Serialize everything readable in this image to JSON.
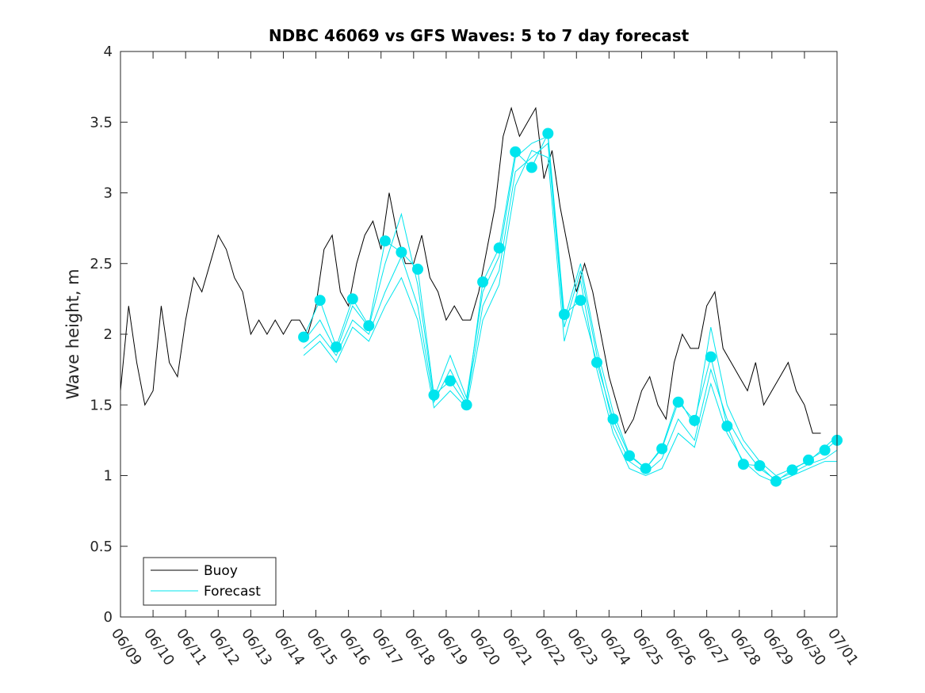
{
  "chart_data": {
    "type": "line",
    "title": "NDBC 46069 vs GFS Waves: 5 to 7 day forecast",
    "xlabel": "",
    "ylabel": "Wave height, m",
    "xlim": [
      "06/09",
      "07/01"
    ],
    "ylim": [
      0,
      4
    ],
    "x_tick_labels": [
      "06/09",
      "06/10",
      "06/11",
      "06/12",
      "06/13",
      "06/14",
      "06/15",
      "06/16",
      "06/17",
      "06/18",
      "06/19",
      "06/20",
      "06/21",
      "06/22",
      "06/23",
      "06/24",
      "06/25",
      "06/26",
      "06/27",
      "06/28",
      "06/29",
      "06/30",
      "07/01"
    ],
    "y_ticks": [
      0,
      0.5,
      1,
      1.5,
      2,
      2.5,
      3,
      3.5,
      4
    ],
    "y_tick_labels": [
      "0",
      "0.5",
      "1",
      "1.5",
      "2",
      "2.5",
      "3",
      "3.5",
      "4"
    ],
    "grid": false,
    "legend": {
      "placement": "bottom-left",
      "entries": [
        "Buoy",
        "Forecast"
      ]
    },
    "colors": {
      "buoy": "#000000",
      "forecast": "#00e5ee"
    },
    "series": [
      {
        "name": "Buoy",
        "x": [
          "06/09 00:00",
          "06/09 06:00",
          "06/09 12:00",
          "06/09 18:00",
          "06/10 00:00",
          "06/10 06:00",
          "06/10 12:00",
          "06/10 18:00",
          "06/11 00:00",
          "06/11 06:00",
          "06/11 12:00",
          "06/11 18:00",
          "06/12 00:00",
          "06/12 06:00",
          "06/12 12:00",
          "06/12 18:00",
          "06/13 00:00",
          "06/13 06:00",
          "06/13 12:00",
          "06/13 18:00",
          "06/14 00:00",
          "06/14 06:00",
          "06/14 12:00",
          "06/14 18:00",
          "06/15 00:00",
          "06/15 06:00",
          "06/15 12:00",
          "06/15 18:00",
          "06/16 00:00",
          "06/16 06:00",
          "06/16 12:00",
          "06/16 18:00",
          "06/17 00:00",
          "06/17 06:00",
          "06/17 12:00",
          "06/17 18:00",
          "06/18 00:00",
          "06/18 06:00",
          "06/18 12:00",
          "06/18 18:00",
          "06/19 00:00",
          "06/19 06:00",
          "06/19 12:00",
          "06/19 18:00",
          "06/20 00:00",
          "06/20 06:00",
          "06/20 12:00",
          "06/20 18:00",
          "06/21 00:00",
          "06/21 06:00",
          "06/21 12:00",
          "06/21 18:00",
          "06/22 00:00",
          "06/22 06:00",
          "06/22 12:00",
          "06/22 18:00",
          "06/23 00:00",
          "06/23 06:00",
          "06/23 12:00",
          "06/23 18:00",
          "06/24 00:00",
          "06/24 06:00",
          "06/24 12:00",
          "06/24 18:00",
          "06/25 00:00",
          "06/25 06:00",
          "06/25 12:00",
          "06/25 18:00",
          "06/26 00:00",
          "06/26 06:00",
          "06/26 12:00",
          "06/26 18:00",
          "06/27 00:00",
          "06/27 06:00",
          "06/27 12:00",
          "06/27 18:00",
          "06/28 00:00",
          "06/28 06:00",
          "06/28 12:00",
          "06/28 18:00",
          "06/29 00:00",
          "06/29 06:00",
          "06/29 12:00",
          "06/29 18:00",
          "06/30 00:00",
          "06/30 06:00",
          "06/30 12:00"
        ],
        "y": [
          1.6,
          2.2,
          1.8,
          1.5,
          1.6,
          2.2,
          1.8,
          1.7,
          2.1,
          2.4,
          2.3,
          2.5,
          2.7,
          2.6,
          2.4,
          2.3,
          2.0,
          2.1,
          2.0,
          2.1,
          2.0,
          2.1,
          2.1,
          2.0,
          2.2,
          2.6,
          2.7,
          2.3,
          2.2,
          2.5,
          2.7,
          2.8,
          2.6,
          3.0,
          2.7,
          2.5,
          2.5,
          2.7,
          2.4,
          2.3,
          2.1,
          2.2,
          2.1,
          2.1,
          2.3,
          2.6,
          2.9,
          3.4,
          3.6,
          3.4,
          3.5,
          3.6,
          3.1,
          3.3,
          2.9,
          2.6,
          2.3,
          2.5,
          2.3,
          2.0,
          1.7,
          1.5,
          1.3,
          1.4,
          1.6,
          1.7,
          1.5,
          1.4,
          1.8,
          2.0,
          1.9,
          1.9,
          2.2,
          2.3,
          1.9,
          1.8,
          1.7,
          1.6,
          1.8,
          1.5,
          1.6,
          1.7,
          1.8,
          1.6,
          1.5,
          1.3,
          1.3
        ]
      },
      {
        "name": "Forecast",
        "markers": true,
        "x": [
          "06/14 15:00",
          "06/15 03:00",
          "06/15 15:00",
          "06/16 03:00",
          "06/16 15:00",
          "06/17 03:00",
          "06/17 15:00",
          "06/18 03:00",
          "06/18 15:00",
          "06/19 03:00",
          "06/19 15:00",
          "06/20 03:00",
          "06/20 15:00",
          "06/21 03:00",
          "06/21 15:00",
          "06/22 03:00",
          "06/22 15:00",
          "06/23 03:00",
          "06/23 15:00",
          "06/24 03:00",
          "06/24 15:00",
          "06/25 03:00",
          "06/25 15:00",
          "06/26 03:00",
          "06/26 15:00",
          "06/27 03:00",
          "06/27 15:00",
          "06/28 03:00",
          "06/28 15:00",
          "06/29 03:00",
          "06/29 15:00",
          "06/30 03:00",
          "06/30 15:00",
          "07/01 00:00"
        ],
        "y": [
          1.98,
          2.24,
          1.91,
          2.25,
          2.06,
          2.66,
          2.58,
          2.46,
          1.57,
          1.67,
          1.5,
          2.37,
          2.61,
          3.29,
          3.18,
          3.42,
          2.14,
          2.24,
          1.8,
          1.4,
          1.14,
          1.05,
          1.19,
          1.52,
          1.39,
          1.84,
          1.35,
          1.08,
          1.07,
          0.96,
          1.04,
          1.11,
          1.18,
          1.25
        ]
      },
      {
        "name": "",
        "x": [
          "06/14 15:00",
          "06/15 03:00",
          "06/15 15:00",
          "06/16 03:00",
          "06/16 15:00",
          "06/17 03:00",
          "06/17 15:00",
          "06/18 03:00",
          "06/18 15:00",
          "06/19 03:00",
          "06/19 15:00",
          "06/20 03:00",
          "06/20 15:00",
          "06/21 03:00",
          "06/21 15:00",
          "06/22 03:00",
          "06/22 15:00",
          "06/23 03:00",
          "06/23 15:00",
          "06/24 03:00",
          "06/24 15:00",
          "06/25 03:00",
          "06/25 15:00",
          "06/26 03:00",
          "06/26 15:00",
          "06/27 03:00",
          "06/27 15:00",
          "06/28 03:00",
          "06/28 15:00",
          "06/29 03:00",
          "06/29 15:00",
          "06/30 03:00",
          "06/30 15:00",
          "07/01 00:00"
        ],
        "y": [
          1.85,
          1.95,
          1.8,
          2.05,
          1.95,
          2.2,
          2.4,
          2.1,
          1.48,
          1.6,
          1.48,
          2.1,
          2.35,
          3.05,
          3.3,
          3.25,
          1.95,
          2.38,
          1.75,
          1.3,
          1.05,
          1.0,
          1.05,
          1.3,
          1.2,
          1.65,
          1.3,
          1.1,
          1.0,
          0.95,
          1.0,
          1.05,
          1.1,
          1.1
        ]
      },
      {
        "name": "",
        "x": [
          "06/14 15:00",
          "06/15 03:00",
          "06/15 15:00",
          "06/16 03:00",
          "06/16 15:00",
          "06/17 03:00",
          "06/17 15:00",
          "06/18 03:00",
          "06/18 15:00",
          "06/19 03:00",
          "06/19 15:00",
          "06/20 03:00",
          "06/20 15:00",
          "06/21 03:00",
          "06/21 15:00",
          "06/22 03:00",
          "06/22 15:00",
          "06/23 03:00",
          "06/23 15:00",
          "06/24 03:00",
          "06/24 15:00",
          "06/25 03:00",
          "06/25 15:00",
          "06/26 03:00",
          "06/26 15:00",
          "06/27 03:00",
          "06/27 15:00",
          "06/28 03:00",
          "06/28 15:00",
          "06/29 03:00",
          "06/29 15:00",
          "06/30 03:00",
          "06/30 15:00",
          "07/01 00:00"
        ],
        "y": [
          1.9,
          2.0,
          1.85,
          2.1,
          2.0,
          2.3,
          2.55,
          2.2,
          1.52,
          1.75,
          1.52,
          2.2,
          2.45,
          3.15,
          3.25,
          3.35,
          2.05,
          2.45,
          1.85,
          1.35,
          1.1,
          1.02,
          1.12,
          1.4,
          1.25,
          1.75,
          1.4,
          1.2,
          1.05,
          0.97,
          1.02,
          1.08,
          1.12,
          1.18
        ]
      },
      {
        "name": "",
        "x": [
          "06/14 15:00",
          "06/15 03:00",
          "06/15 15:00",
          "06/16 03:00",
          "06/16 15:00",
          "06/17 03:00",
          "06/17 15:00",
          "06/18 03:00",
          "06/18 15:00",
          "06/19 03:00",
          "06/19 15:00",
          "06/20 03:00",
          "06/20 15:00",
          "06/21 03:00",
          "06/21 15:00",
          "06/22 03:00",
          "06/22 15:00",
          "06/23 03:00",
          "06/23 15:00",
          "06/24 03:00",
          "06/24 15:00",
          "06/25 03:00",
          "06/25 15:00",
          "06/26 03:00",
          "06/26 15:00",
          "06/27 03:00",
          "06/27 15:00",
          "06/28 03:00",
          "06/28 15:00",
          "06/29 03:00",
          "06/29 15:00",
          "06/30 03:00",
          "06/30 15:00",
          "07/01 00:00"
        ],
        "y": [
          1.95,
          2.1,
          1.88,
          2.2,
          2.05,
          2.5,
          2.85,
          2.35,
          1.55,
          1.85,
          1.55,
          2.3,
          2.55,
          3.25,
          3.35,
          3.4,
          2.1,
          2.5,
          1.9,
          1.45,
          1.15,
          1.05,
          1.2,
          1.55,
          1.35,
          2.05,
          1.5,
          1.25,
          1.1,
          1.0,
          1.05,
          1.1,
          1.2,
          1.28
        ]
      }
    ]
  }
}
